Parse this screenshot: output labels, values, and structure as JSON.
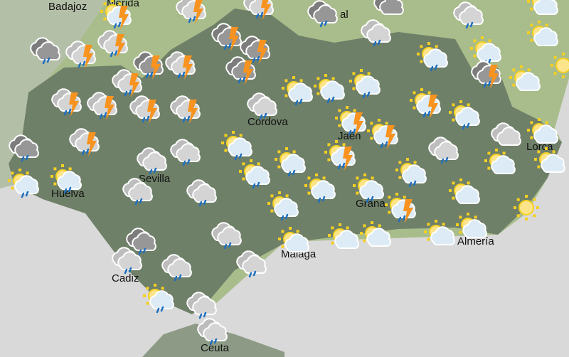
{
  "colors": {
    "sea": "#d9d9d9",
    "land_outside": "#a9bd8c",
    "region": "#6f8069",
    "cloud_light": "#d0d0d0",
    "cloud_dark": "#8e8e8e",
    "rain": "#1e6fc0",
    "lightning": "#f7931e",
    "sun": "#f5d020"
  },
  "cities": [
    {
      "name": "Badajoz"
    },
    {
      "name": "Merida"
    },
    {
      "name": "al"
    },
    {
      "name": "Cordova"
    },
    {
      "name": "Jaén"
    },
    {
      "name": "Sevilla"
    },
    {
      "name": "Huelva"
    },
    {
      "name": "Grana"
    },
    {
      "name": "Lorca"
    },
    {
      "name": "Almería"
    },
    {
      "name": "Malaga"
    },
    {
      "name": "Cadiz"
    },
    {
      "name": "Ceuta"
    }
  ],
  "forecast_icons": [
    "sun-storm",
    "storm",
    "storm",
    "rain-dark",
    "cloud-dark",
    "rain",
    "sun-cloud",
    "rain-dark",
    "storm",
    "storm",
    "storm-dark",
    "storm-dark",
    "rain",
    "sun-rain",
    "sun-rain",
    "sun-cloud",
    "storm-dark",
    "storm",
    "storm",
    "storm-dark",
    "storm-dark",
    "sun",
    "sun-rain",
    "sun-rain",
    "sun-rain",
    "sun-cloud",
    "storm",
    "storm",
    "storm",
    "storm",
    "rain",
    "sun-storm",
    "sun-rain",
    "sun-storm",
    "sun-storm",
    "cloud",
    "sun-cloud",
    "rain-dark",
    "storm",
    "sun-rain",
    "sun-storm",
    "rain",
    "rain",
    "rain",
    "sun-rain",
    "sun-cloud",
    "sun-cloud",
    "sun-rain",
    "sun-rain",
    "sun-rain",
    "sun-rain",
    "rain",
    "rain",
    "sun-rain",
    "sun-rain",
    "sun-cloud",
    "sun-rain",
    "sun-storm",
    "sun",
    "rain-dark",
    "rain",
    "sun-cloud",
    "sun-cloud",
    "sun-cloud",
    "sun-cloud",
    "sun-cloud",
    "rain",
    "rain",
    "rain",
    "sun-rain",
    "rain",
    "rain"
  ]
}
